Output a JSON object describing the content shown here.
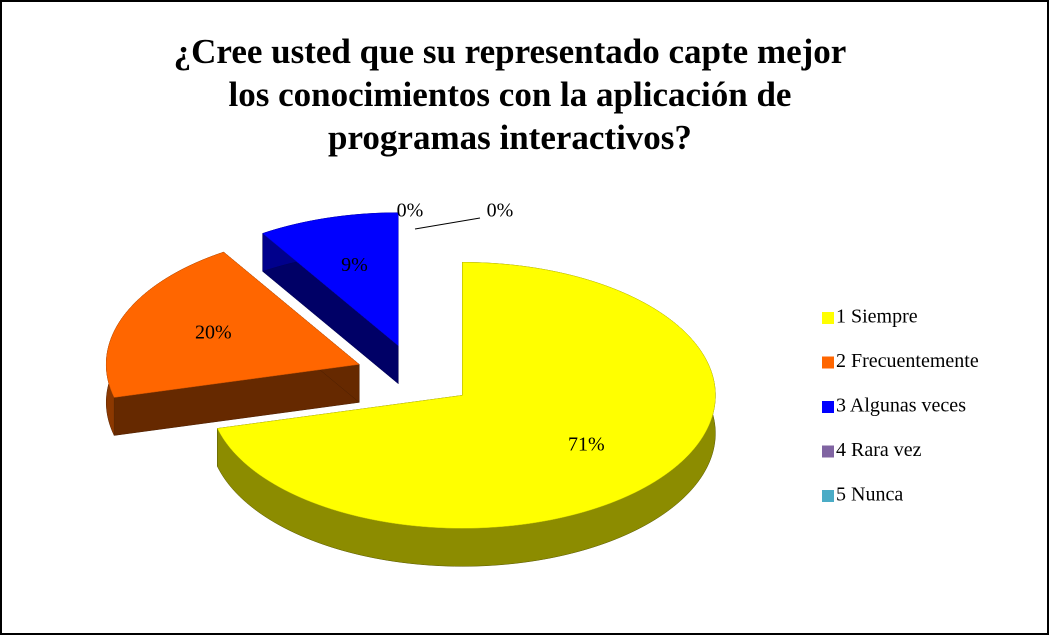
{
  "chart_data": {
    "type": "pie",
    "title": "¿Cree usted que su representado capte mejor los conocimientos con la aplicación de programas interactivos?",
    "categories": [
      "1 Siempre",
      "2 Frecuentemente",
      "3 Algunas veces",
      "4 Rara vez",
      "5 Nunca"
    ],
    "values": [
      71,
      20,
      9,
      0,
      0
    ],
    "value_labels": [
      "71%",
      "20%",
      "9%",
      "0%",
      "0%"
    ],
    "colors": [
      "#ffff00",
      "#ff6600",
      "#0000ff",
      "#8064a2",
      "#4bacc6"
    ],
    "legend": "right"
  }
}
